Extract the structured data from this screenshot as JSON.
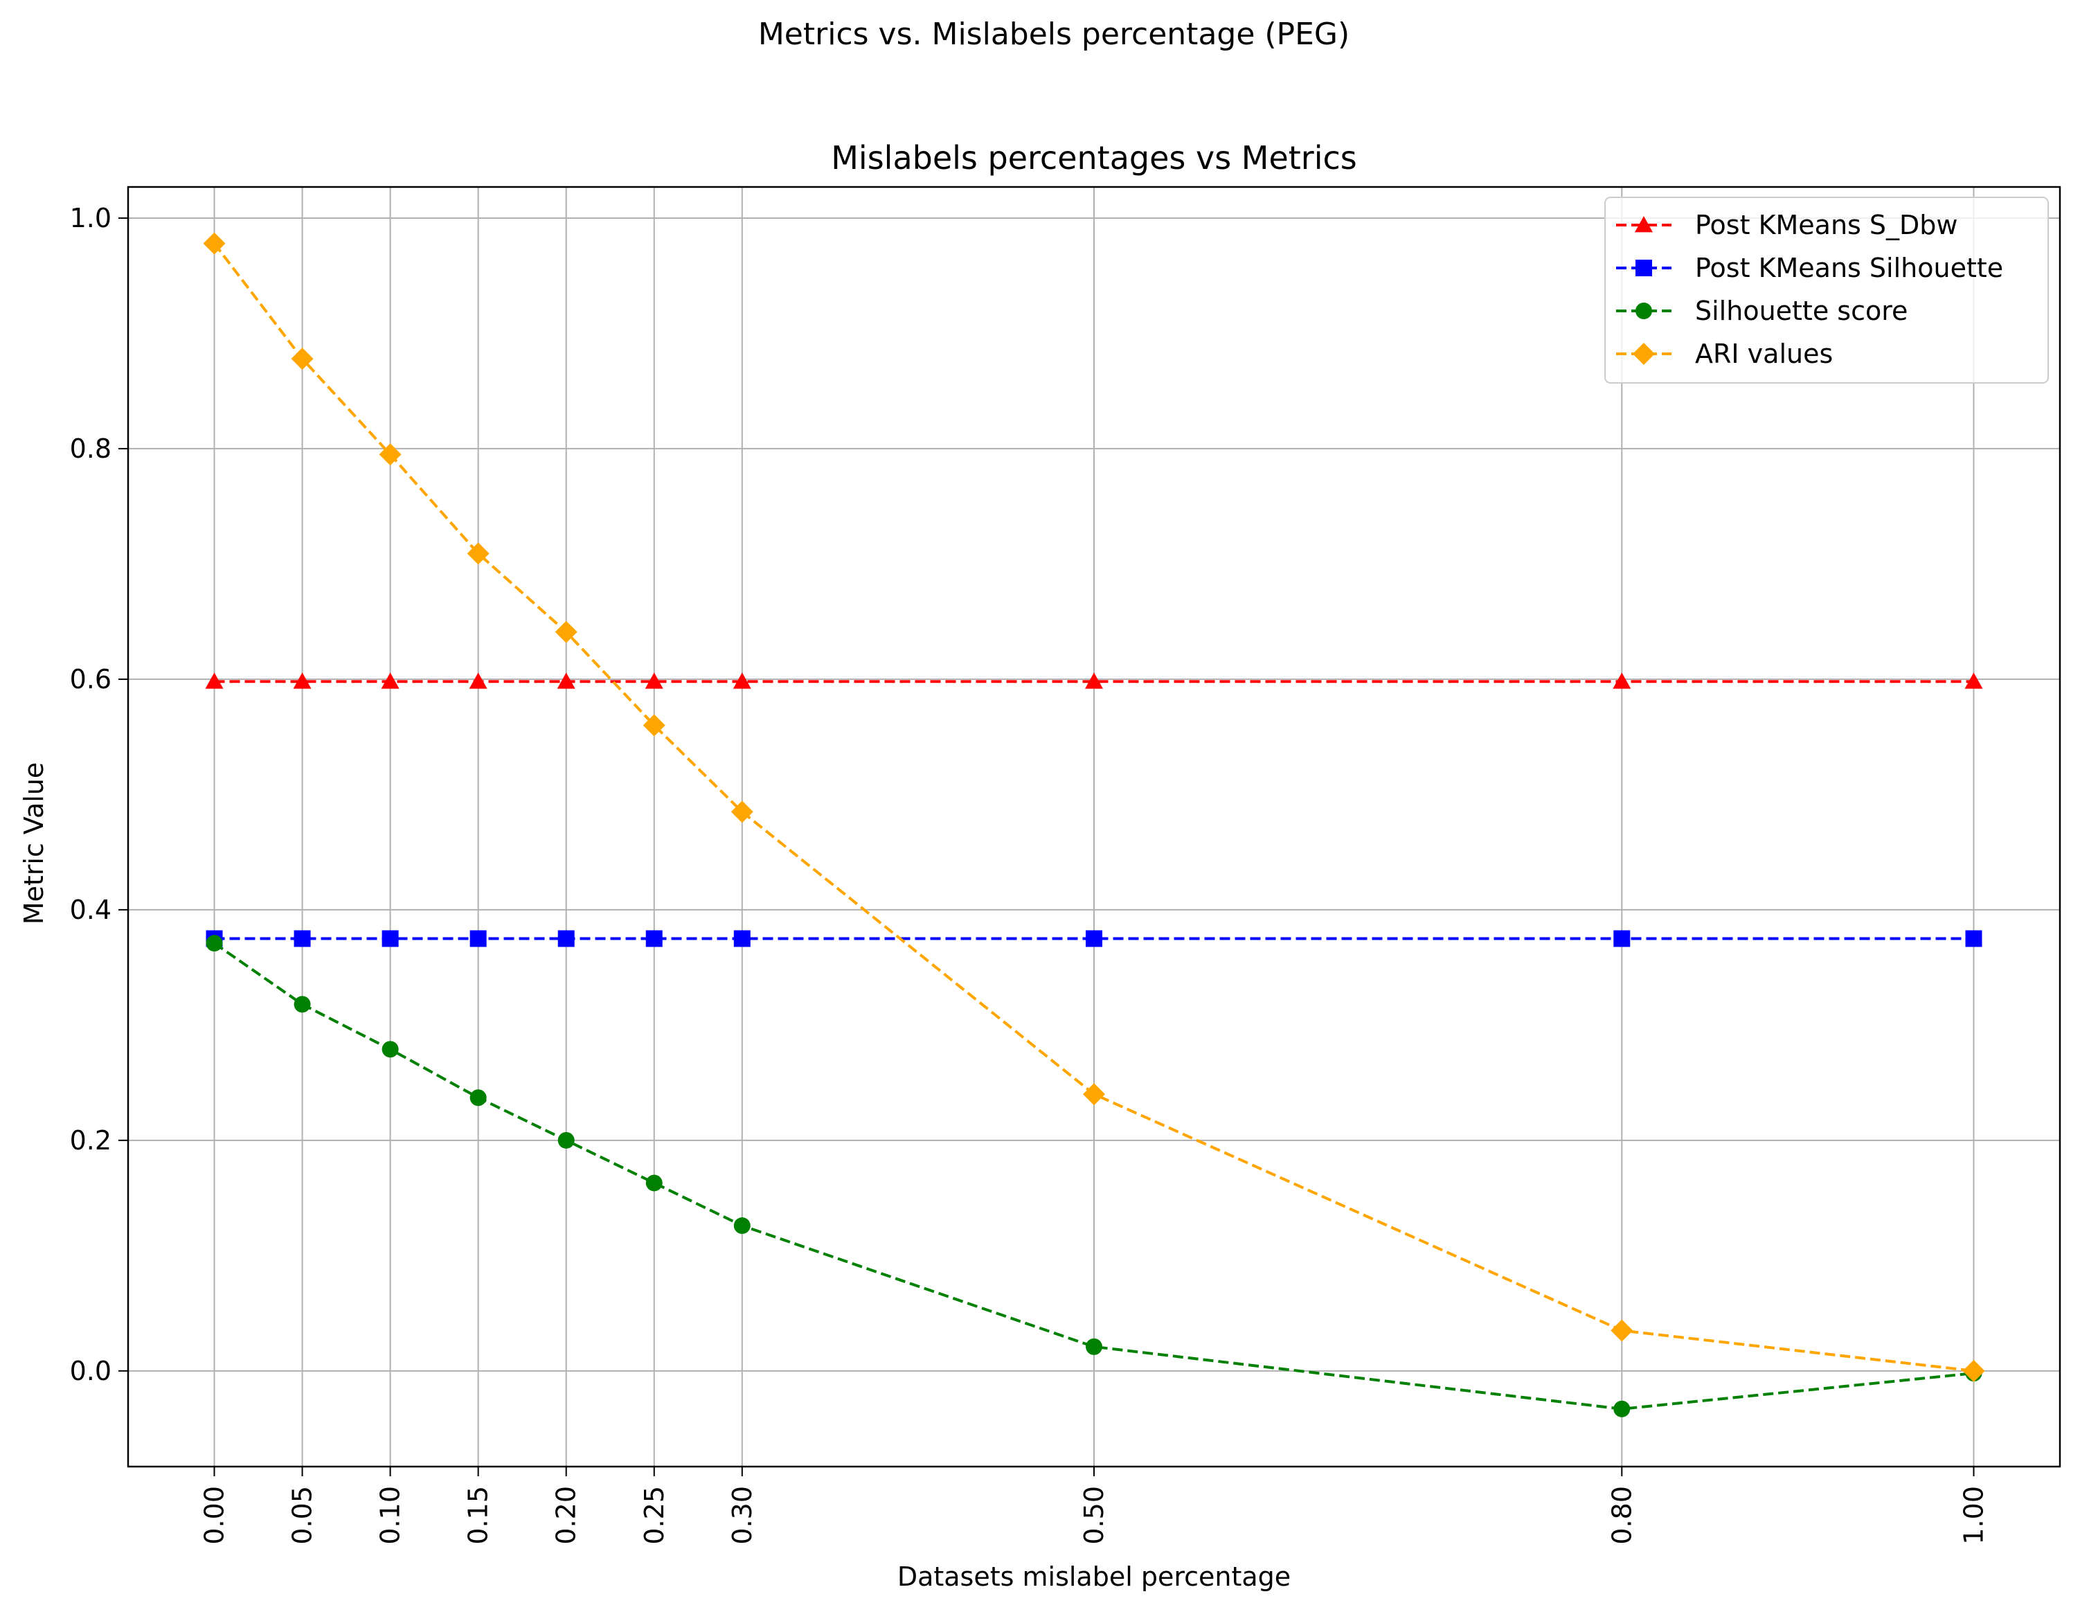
{
  "suptitle": "Metrics vs. Mislabels percentage (PEG)",
  "chart_data": {
    "type": "line",
    "title": "Mislabels percentages vs Metrics",
    "xlabel": "Datasets mislabel percentage",
    "ylabel": "Metric Value",
    "x": [
      0.0,
      0.05,
      0.1,
      0.15,
      0.2,
      0.25,
      0.3,
      0.5,
      0.8,
      1.0
    ],
    "x_tick_labels": [
      "0.00",
      "0.05",
      "0.10",
      "0.15",
      "0.20",
      "0.25",
      "0.30",
      "0.50",
      "0.80",
      "1.00"
    ],
    "y_ticks": [
      0.0,
      0.2,
      0.4,
      0.6,
      0.8,
      1.0
    ],
    "y_tick_labels": [
      "0.0",
      "0.2",
      "0.4",
      "0.6",
      "0.8",
      "1.0"
    ],
    "xlim": [
      -0.049,
      1.049
    ],
    "ylim": [
      -0.083,
      1.027
    ],
    "grid": true,
    "legend_position": "top-right",
    "series": [
      {
        "name": "Post KMeans S_Dbw",
        "color": "#ff0000",
        "marker": "triangle",
        "values": [
          0.598,
          0.598,
          0.598,
          0.598,
          0.598,
          0.598,
          0.598,
          0.598,
          0.598,
          0.598
        ]
      },
      {
        "name": "Post KMeans Silhouette",
        "color": "#0000ff",
        "marker": "square",
        "values": [
          0.375,
          0.375,
          0.375,
          0.375,
          0.375,
          0.375,
          0.375,
          0.375,
          0.375,
          0.375
        ]
      },
      {
        "name": "Silhouette score",
        "color": "#008000",
        "marker": "circle",
        "values": [
          0.371,
          0.318,
          0.279,
          0.237,
          0.2,
          0.163,
          0.126,
          0.021,
          -0.033,
          -0.002
        ]
      },
      {
        "name": "ARI values",
        "color": "#ffa500",
        "marker": "diamond",
        "values": [
          0.978,
          0.878,
          0.795,
          0.709,
          0.641,
          0.56,
          0.485,
          0.24,
          0.035,
          0.0
        ]
      }
    ]
  }
}
